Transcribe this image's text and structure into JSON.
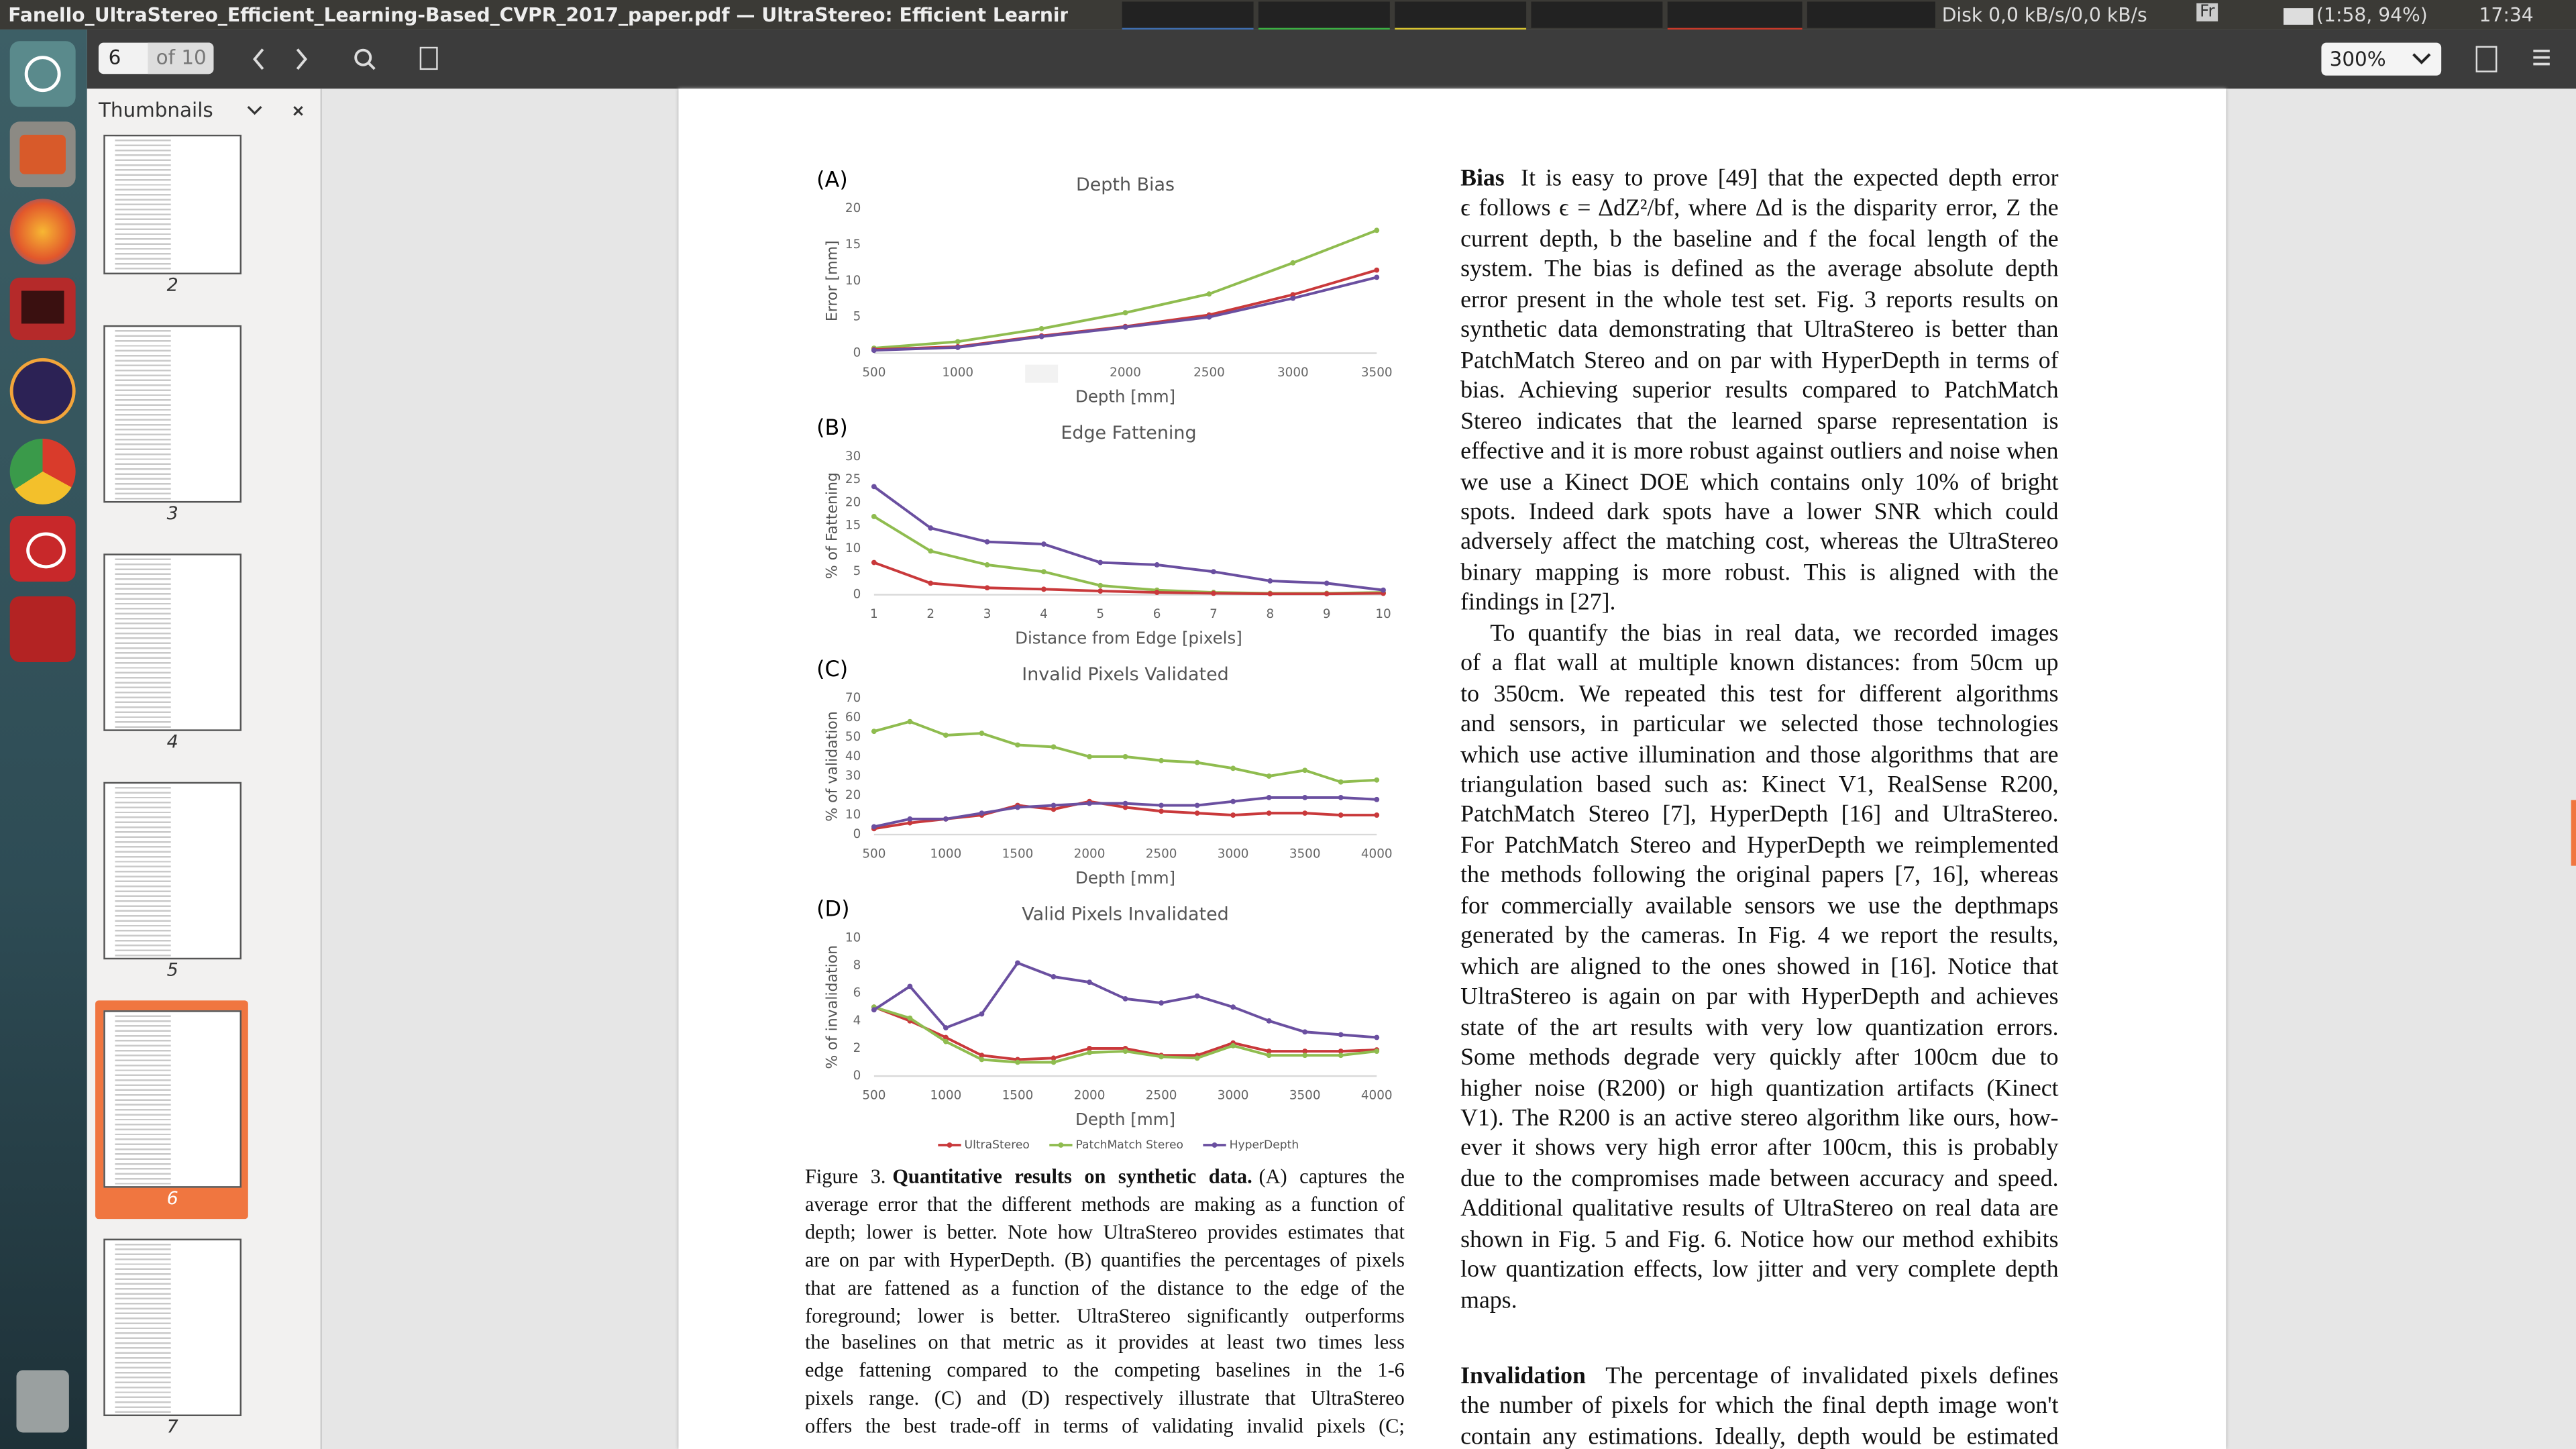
{
  "window": {
    "title": "Fanello_UltraStereo_Efficient_Learning-Based_CVPR_2017_paper.pdf — UltraStereo: Efficient Learning-Base",
    "disk": "Disk 0,0 kB/s/0,0 kB/s",
    "keyboard": "Fr",
    "battery": "(1:58, 94%)",
    "time": "17:34"
  },
  "toolbar": {
    "page": "6",
    "page_count": "of 10",
    "zoom": "300%"
  },
  "sidebar": {
    "title": "Thumbnails",
    "thumbnails": [
      "2",
      "3",
      "4",
      "5",
      "6",
      "7"
    ]
  },
  "chart_data": [
    {
      "type": "line",
      "label": "(A)",
      "title": "Depth Bias",
      "x_label": "Depth [mm]",
      "y_label": "Error [mm]",
      "x": [
        500,
        1000,
        1500,
        2000,
        2500,
        3000,
        3500
      ],
      "xlim": [
        500,
        3500
      ],
      "xticks": [
        500,
        1000,
        2000,
        2500,
        3000,
        3500
      ],
      "ylim": [
        0,
        20
      ],
      "yticks": [
        0,
        5,
        10,
        15,
        20
      ],
      "series": [
        {
          "color": "#8fbc4f",
          "values": [
            0.7,
            1.6,
            3.4,
            5.6,
            8.2,
            12.5,
            17.0
          ]
        },
        {
          "color": "#c9393b",
          "values": [
            0.5,
            0.9,
            2.4,
            3.7,
            5.3,
            8.1,
            11.5
          ]
        },
        {
          "color": "#6a4fa0",
          "values": [
            0.4,
            0.8,
            2.3,
            3.6,
            5.0,
            7.6,
            10.5
          ]
        }
      ]
    },
    {
      "type": "line",
      "label": "(B)",
      "title": "Edge Fattening",
      "x_label": "Distance from Edge [pixels]",
      "y_label": "% of Fattening",
      "x": [
        1,
        2,
        3,
        4,
        5,
        6,
        7,
        8,
        9,
        10
      ],
      "xlim": [
        1,
        10
      ],
      "xticks": [
        1,
        2,
        3,
        4,
        5,
        6,
        7,
        8,
        9,
        10
      ],
      "ylim": [
        0,
        30
      ],
      "yticks": [
        0,
        5,
        10,
        15,
        20,
        25,
        30
      ],
      "series": [
        {
          "color": "#8fbc4f",
          "values": [
            17,
            9.5,
            6.5,
            5,
            2,
            1,
            0.5,
            0.3,
            0.3,
            0.5
          ]
        },
        {
          "color": "#c9393b",
          "values": [
            7,
            2.5,
            1.5,
            1.2,
            0.8,
            0.5,
            0.3,
            0.2,
            0.2,
            0.3
          ]
        },
        {
          "color": "#6a4fa0",
          "values": [
            23.5,
            14.5,
            11.5,
            11,
            7,
            6.5,
            5,
            3,
            2.5,
            1
          ]
        }
      ]
    },
    {
      "type": "line",
      "label": "(C)",
      "title": "Invalid Pixels Validated",
      "x_label": "Depth [mm]",
      "y_label": "% of validation",
      "x": [
        500,
        750,
        1000,
        1250,
        1500,
        1750,
        2000,
        2250,
        2500,
        2750,
        3000,
        3250,
        3500,
        3750,
        4000
      ],
      "xlim": [
        500,
        4000
      ],
      "xticks": [
        500,
        1000,
        1500,
        2000,
        2500,
        3000,
        3500,
        4000
      ],
      "ylim": [
        0,
        70
      ],
      "yticks": [
        0,
        10,
        20,
        30,
        40,
        50,
        60,
        70
      ],
      "series": [
        {
          "color": "#8fbc4f",
          "values": [
            53,
            58,
            51,
            52,
            46,
            45,
            40,
            40,
            38,
            37,
            34,
            30,
            33,
            27,
            28
          ]
        },
        {
          "color": "#c9393b",
          "values": [
            3,
            6,
            8,
            10,
            15,
            13,
            17,
            14,
            12,
            11,
            10,
            11,
            11,
            10,
            10
          ]
        },
        {
          "color": "#6a4fa0",
          "values": [
            4,
            8,
            8,
            11,
            14,
            15,
            16,
            16,
            15,
            15,
            17,
            19,
            19,
            19,
            18
          ]
        }
      ]
    },
    {
      "type": "line",
      "label": "(D)",
      "title": "Valid Pixels Invalidated",
      "x_label": "Depth [mm]",
      "y_label": "% of invalidation",
      "x": [
        500,
        750,
        1000,
        1250,
        1500,
        1750,
        2000,
        2250,
        2500,
        2750,
        3000,
        3250,
        3500,
        3750,
        4000
      ],
      "xlim": [
        500,
        4000
      ],
      "xticks": [
        500,
        1000,
        1500,
        2000,
        2500,
        3000,
        3500,
        4000
      ],
      "ylim": [
        0,
        10
      ],
      "yticks": [
        0,
        2,
        4,
        6,
        8,
        10
      ],
      "series": [
        {
          "name": "UltraStereo",
          "color": "#c9393b",
          "values": [
            5,
            4,
            2.8,
            1.5,
            1.2,
            1.3,
            2,
            2,
            1.5,
            1.5,
            2.4,
            1.8,
            1.8,
            1.8,
            1.9
          ]
        },
        {
          "name": "PatchMatch Stereo",
          "color": "#8fbc4f",
          "values": [
            5,
            4.2,
            2.5,
            1.2,
            1,
            1,
            1.7,
            1.8,
            1.4,
            1.3,
            2.2,
            1.5,
            1.5,
            1.5,
            1.8
          ]
        },
        {
          "name": "HyperDepth",
          "color": "#6a4fa0",
          "values": [
            4.8,
            6.5,
            3.5,
            4.5,
            8.2,
            7.2,
            6.8,
            5.6,
            5.3,
            5.8,
            5,
            4,
            3.2,
            3.0,
            2.8
          ]
        }
      ]
    }
  ],
  "caption": {
    "label": "Figure 3.",
    "heading": "Quantitative results on synthetic data.",
    "lines": [
      "(A) captures the",
      "average error that the different methods are making as a function of",
      "depth; lower is better. Note how UltraStereo provides estimates that",
      "are on par with HyperDepth. (B) quantifies the percentages of pixels",
      "that are fattened as a function of the distance to the edge of the",
      "foreground; lower is better. UltraStereo significantly outperforms",
      "the baselines on that metric as it provides at least two times less",
      "edge fattening compared to the competing baselines in the 1-6",
      "pixels range. (C) and (D) respectively illustrate that UltraStereo",
      "offers the best trade-off in terms of validating invalid pixels (C;"
    ]
  },
  "text": {
    "bias": {
      "heading": "Bias",
      "paragraphs": [
        [
          "It is easy to prove [49] that the expected depth error",
          "ϵ follows ϵ = ΔdZ²/bf, where Δd is the disparity error, Z the",
          "current depth, b the baseline and f the focal length of the",
          "system. The bias is defined as the average absolute depth",
          "error present in the whole test set. Fig. 3 reports results on",
          "synthetic data demonstrating that UltraStereo is better than",
          "PatchMatch Stereo and on par with HyperDepth in terms of",
          "bias. Achieving superior results compared to PatchMatch",
          "Stereo indicates that the learned sparse representation is",
          "effective and it is more robust against outliers and noise when",
          "we use a Kinect DOE which contains only 10% of bright",
          "spots. Indeed dark spots have a lower SNR which could",
          "adversely affect the matching cost, whereas the UltraStereo",
          "binary mapping is more robust. This is aligned with the",
          "findings in [27]."
        ],
        [
          "To quantify the bias in real data, we recorded images",
          "of a flat wall at multiple known distances: from 50cm up",
          "to 350cm. We repeated this test for different algorithms",
          "and sensors, in particular we selected those technologies",
          "which use active illumination and those algorithms that are",
          "triangulation based such as: Kinect V1, RealSense R200,",
          "PatchMatch Stereo [7], HyperDepth [16] and UltraStereo.",
          "For PatchMatch Stereo and HyperDepth we reimplemented",
          "the methods following the original papers [7, 16], whereas",
          "for commercially available sensors we use the depthmaps",
          "generated by the cameras. In Fig. 4 we report the results,",
          "which are aligned to the ones showed in [16]. Notice that",
          "UltraStereo is again on par with HyperDepth and achieves",
          "state of the art results with very low quantization errors.",
          "Some methods degrade very quickly after 100cm due to",
          "higher noise (R200) or high quantization artifacts (Kinect",
          "V1). The R200 is an active stereo algorithm like ours, how-",
          "ever it shows very high error after 100cm, this is probably",
          "due to the compromises made between accuracy and speed.",
          "Additional qualitative results of UltraStereo on real data are",
          "shown in Fig. 5 and Fig. 6. Notice how our method exhibits",
          "low quantization effects, low jitter and very complete depth",
          "maps."
        ]
      ]
    },
    "invalidation": {
      "heading": "Invalidation",
      "lines": [
        "The percentage of invalidated pixels defines",
        "the number of pixels for which the final depth image won't",
        "contain any estimations. Ideally, depth would be estimated"
      ]
    }
  }
}
